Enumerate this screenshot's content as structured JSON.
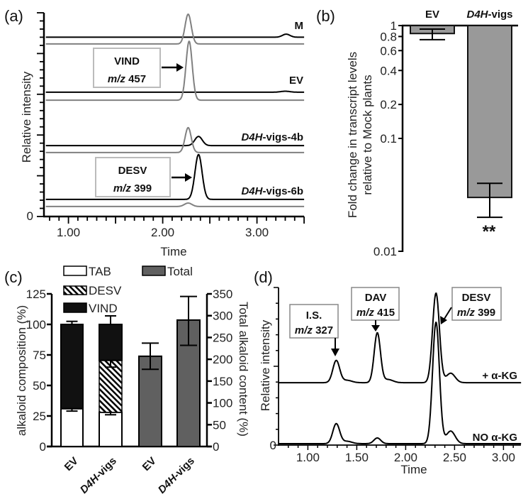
{
  "chart_data": [
    {
      "panel": "(a)",
      "type": "line",
      "xlabel": "Time",
      "ylabel": "Relative intensity",
      "xlim": [
        0.74,
        3.5
      ],
      "ylim": [
        0,
        100
      ],
      "xticks": [
        {
          "v": 1,
          "label": "1.00"
        },
        {
          "v": 2,
          "label": "2.00"
        },
        {
          "v": 3,
          "label": "3.00"
        }
      ],
      "yticks": [
        {
          "v": 0,
          "label": "0"
        }
      ],
      "series": [
        {
          "name": "M",
          "color": "#000000",
          "baseline": 88,
          "peaks": [
            [
              3.31,
              1.5,
              0.04
            ]
          ]
        },
        {
          "name": "M-grey",
          "color": "#808080",
          "baseline": 84.7,
          "peaks": [
            [
              2.27,
              14.6,
              0.033
            ]
          ]
        },
        {
          "name": "EV",
          "color": "#000000",
          "baseline": 61,
          "peaks": [
            [
              3.3,
              0.5,
              0.05
            ]
          ]
        },
        {
          "name": "EV-grey",
          "color": "#808080",
          "baseline": 57.1,
          "peaks": [
            [
              2.28,
              28.9,
              0.033
            ]
          ]
        },
        {
          "name": "D4H-vigs-4b",
          "color": "#000000",
          "baseline": 34.8,
          "peaks": [
            [
              2.38,
              4.5,
              0.04
            ]
          ]
        },
        {
          "name": "D4H-vigs-4b-grey",
          "color": "#808080",
          "baseline": 31.4,
          "peaks": [
            [
              2.27,
              12.2,
              0.033
            ]
          ]
        },
        {
          "name": "D4H-vigs-6b",
          "color": "#000000",
          "baseline": 8.4,
          "peaks": [
            [
              2.38,
              22,
              0.038
            ]
          ]
        },
        {
          "name": "D4H-vigs-6b-grey",
          "color": "#808080",
          "baseline": 4.9,
          "peaks": [
            [
              2.27,
              1.7,
              0.04
            ]
          ]
        }
      ],
      "trace_labels": {
        "m": "M",
        "ev": "EV",
        "vigs4b": {
          "italic": "D4H",
          "rest": "-vigs-4b"
        },
        "vigs6b": {
          "italic": "D4H",
          "rest": "-vigs-6b"
        }
      },
      "annotations": [
        {
          "title": "VIND",
          "mz_italic": "m/z",
          "mz": "457"
        },
        {
          "title": "DESV",
          "mz_italic": "m/z",
          "mz": "399"
        }
      ]
    },
    {
      "panel": "(b)",
      "type": "bar",
      "scale": "log",
      "ylabel": [
        "Fold change in transcript levels",
        "relative to Mock plants"
      ],
      "ylim": [
        0.01,
        1
      ],
      "yticks": [
        {
          "v": 1,
          "label": "1"
        },
        {
          "v": 0.8,
          "label": "0.8"
        },
        {
          "v": 0.6,
          "label": "0.6"
        },
        {
          "v": 0.4,
          "label": "0.4"
        },
        {
          "v": 0.2,
          "label": "0.2"
        },
        {
          "v": 0.1,
          "label": "0.1"
        },
        {
          "v": 0.01,
          "label": "0.01"
        }
      ],
      "categories": [
        {
          "label": "EV"
        },
        {
          "italic": "D4H",
          "rest": "-vigs"
        }
      ],
      "values": [
        0.85,
        0.03
      ],
      "error_low": [
        0.75,
        0.02
      ],
      "error_high": [
        0.93,
        0.04
      ],
      "significance": [
        "",
        "**"
      ],
      "bar_color": "#999999"
    },
    {
      "panel": "(c)",
      "type": "bar",
      "ylabel": "alkaloid composition (%)",
      "ylabel_right": "Total alkaloid content (%)",
      "ylim": [
        0,
        125
      ],
      "ylim_right": [
        0,
        350
      ],
      "yticks": [
        "0",
        "25",
        "50",
        "75",
        "100",
        "125"
      ],
      "yticks_right": [
        "0",
        "50",
        "100",
        "150",
        "200",
        "250",
        "300",
        "350"
      ],
      "legend": [
        {
          "label": "TAB",
          "color": "#ffffff"
        },
        {
          "label": "DESV",
          "color": "hatched"
        },
        {
          "label": "VIND",
          "color": "#111111"
        },
        {
          "label": "Total",
          "color": "#606060"
        }
      ],
      "categories": [
        {
          "label": "EV"
        },
        {
          "italic": "D4H",
          "rest": "-vigs"
        },
        {
          "label": "EV"
        },
        {
          "italic": "D4H",
          "rest": "-vigs"
        }
      ],
      "stacked": [
        {
          "category": "EV",
          "TAB": 31,
          "DESV": 0,
          "VIND": 69,
          "err_tab_low": 29,
          "err_desv_low": null,
          "err_top_high": 102.5
        },
        {
          "category": "D4H-vigs",
          "TAB": 28,
          "DESV": 42.5,
          "VIND": 29.5,
          "err_tab_low": 26,
          "err_desv_low": 65,
          "err_top_high": 107
        }
      ],
      "totals": [
        {
          "category": "EV",
          "value": 207,
          "err_low": 177,
          "err_high": 237
        },
        {
          "category": "D4H-vigs",
          "value": 290,
          "err_low": 232,
          "err_high": 344
        }
      ]
    },
    {
      "panel": "(d)",
      "type": "line",
      "xlabel": "Time",
      "ylabel": "Relative intensity",
      "xlim": [
        0.7,
        3.18
      ],
      "ylim": [
        0,
        100
      ],
      "xticks": [
        {
          "v": 1,
          "label": "1.00"
        },
        {
          "v": 1.5,
          "label": "1.50"
        },
        {
          "v": 2,
          "label": "2.00"
        },
        {
          "v": 2.5,
          "label": "2.50"
        },
        {
          "v": 3,
          "label": "3.00"
        }
      ],
      "yticks": [
        {
          "v": 0,
          "label": "0"
        }
      ],
      "series": [
        {
          "name": "+ α-KG",
          "color": "#000000",
          "baseline": 39.6,
          "peaks": [
            [
              1.29,
              14,
              0.035
            ],
            [
              1.4,
              1.5,
              0.05
            ],
            [
              1.71,
              31.5,
              0.032
            ],
            [
              1.82,
              2,
              0.05
            ],
            [
              2.31,
              56.8,
              0.035
            ],
            [
              2.46,
              6,
              0.045
            ]
          ]
        },
        {
          "name": "NO α-KG",
          "color": "#000000",
          "baseline": 0.9,
          "peaks": [
            [
              1.29,
              12.6,
              0.035
            ],
            [
              1.4,
              1.5,
              0.05
            ],
            [
              1.71,
              3.6,
              0.035
            ],
            [
              2.31,
              77,
              0.035
            ],
            [
              2.46,
              8,
              0.045
            ]
          ]
        }
      ],
      "trace_labels": {
        "plus": "+ α-KG",
        "no": "NO α-KG"
      },
      "annotations": [
        {
          "title": "I.S.",
          "mz_italic": "m/z",
          "mz": "327"
        },
        {
          "title": "DAV",
          "mz_italic": "m/z",
          "mz": "415"
        },
        {
          "title": "DESV",
          "mz_italic": "m/z",
          "mz": "399"
        }
      ]
    }
  ]
}
